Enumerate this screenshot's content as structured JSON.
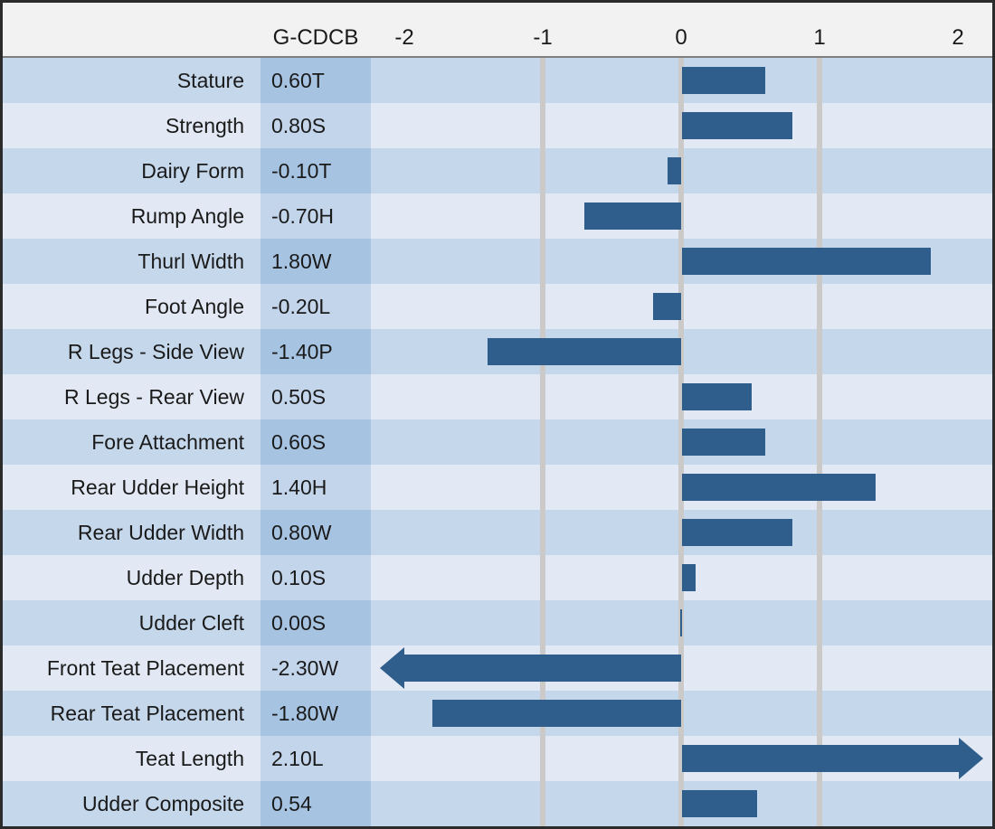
{
  "header": {
    "value_column_label": "G-CDCB"
  },
  "chart_data": {
    "type": "bar",
    "orientation": "horizontal",
    "title": "",
    "xlabel": "",
    "ylabel": "",
    "axis_range": [
      -2,
      2
    ],
    "axis_ticks": [
      -2,
      -1,
      0,
      1,
      2
    ],
    "gridlines_at": [
      -1,
      0,
      1
    ],
    "legend": "none",
    "rows": [
      {
        "trait": "Stature",
        "display": "0.60T",
        "value": 0.6
      },
      {
        "trait": "Strength",
        "display": "0.80S",
        "value": 0.8
      },
      {
        "trait": "Dairy Form",
        "display": "-0.10T",
        "value": -0.1
      },
      {
        "trait": "Rump Angle",
        "display": "-0.70H",
        "value": -0.7
      },
      {
        "trait": "Thurl Width",
        "display": "1.80W",
        "value": 1.8
      },
      {
        "trait": "Foot Angle",
        "display": "-0.20L",
        "value": -0.2
      },
      {
        "trait": "R Legs - Side View",
        "display": "-1.40P",
        "value": -1.4
      },
      {
        "trait": "R Legs - Rear View",
        "display": "0.50S",
        "value": 0.5
      },
      {
        "trait": "Fore Attachment",
        "display": "0.60S",
        "value": 0.6
      },
      {
        "trait": "Rear Udder Height",
        "display": "1.40H",
        "value": 1.4
      },
      {
        "trait": "Rear Udder Width",
        "display": "0.80W",
        "value": 0.8
      },
      {
        "trait": "Udder Depth",
        "display": "0.10S",
        "value": 0.1
      },
      {
        "trait": "Udder Cleft",
        "display": "0.00S",
        "value": 0.0
      },
      {
        "trait": "Front Teat Placement",
        "display": "-2.30W",
        "value": -2.3,
        "overflow": "left"
      },
      {
        "trait": "Rear Teat Placement",
        "display": "-1.80W",
        "value": -1.8
      },
      {
        "trait": "Teat Length",
        "display": "2.10L",
        "value": 2.1,
        "overflow": "right"
      },
      {
        "trait": "Udder Composite",
        "display": "0.54",
        "value": 0.54
      }
    ]
  },
  "colors": {
    "border": "#2B2B2B",
    "header_bg": "#F2F2F2",
    "header_rule": "#7F7F7F",
    "text": "#1A1A1A",
    "grid": "#CBCAC8",
    "bar": "#2F5D8C",
    "row_odd": "#C5D7EB",
    "row_even": "#E2E9F4",
    "val_odd": "#A6C4E2",
    "val_even": "#C3D5EB"
  }
}
